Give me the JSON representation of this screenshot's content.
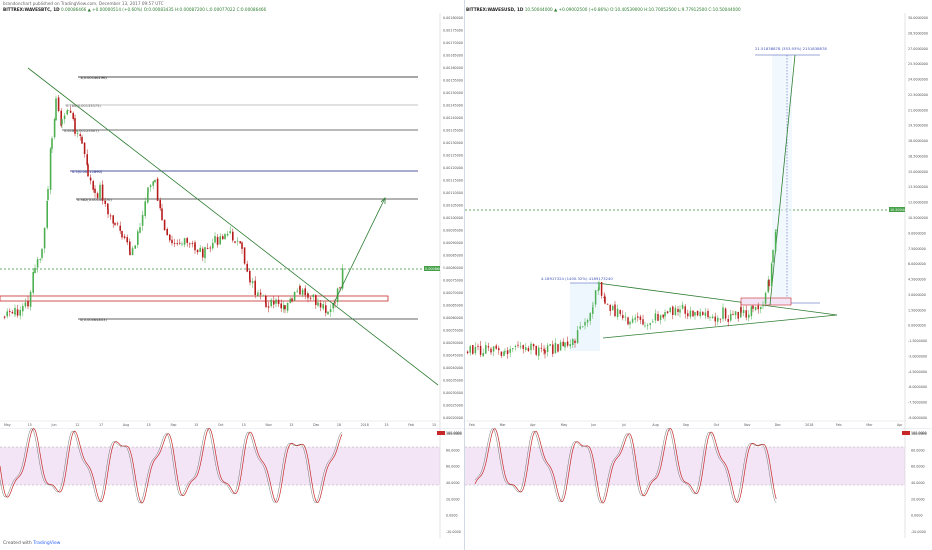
{
  "left_header": {
    "published": "brandonchart published on TradingView.com, December 13, 2017 09:57 UTC",
    "symbol": "BITTREX:WAVESBTC, 1D",
    "ohlc": "0.00086466 ▲ +0.00000514 (+0.60%)  O:0.00083435  H:0.00087200  L:0.00077022  C:0.00086466"
  },
  "right_header": {
    "symbol": "BITTREX:WAVESUSD, 1D",
    "ohlc": "10.50044000 ▲ +0.09002500 (+0.86%)  O:10.40539000  H:10.70052500  L:9.77912500  C:10.50044000"
  },
  "left_chart": {
    "price_axis": [
      "0.00180000",
      "0.00175000",
      "0.00170000",
      "0.00165000",
      "0.00160000",
      "0.00155000",
      "0.00150000",
      "0.00145000",
      "0.00140000",
      "0.00135000",
      "0.00130000",
      "0.00125000",
      "0.00120000",
      "0.00115000",
      "0.00110000",
      "0.00105000",
      "0.00100000",
      "0.00095000",
      "0.00090000",
      "0.00085000",
      "0.00080000",
      "0.00075000",
      "0.00070000",
      "0.00065000",
      "0.00060000",
      "0.00055000",
      "0.00050000",
      "0.00045000",
      "0.00040000",
      "0.00035000",
      "0.00030000",
      "0.00025000",
      "0.00020000"
    ],
    "fib_labels": [
      "1(0.00146196)",
      "0.786(0.00133375)",
      "0.618(0.00125307)",
      "0.5(0.00111890)",
      "0.382(0.00100770)",
      "0(0.00064803)"
    ],
    "current_price_tag": "0.00086466",
    "time_axis": [
      "May",
      "15",
      "Jun",
      "12",
      "17",
      "Aug",
      "15",
      "Sep",
      "15",
      "Oct",
      "15",
      "Nov",
      "15",
      "Dec",
      "18",
      "2018",
      "15",
      "Feb",
      "15"
    ]
  },
  "right_chart": {
    "price_axis": [
      "30.0000000",
      "28.5000000",
      "27.0000000",
      "25.5000000",
      "24.0000000",
      "22.5000000",
      "21.0000000",
      "19.5000000",
      "18.0000000",
      "16.5000000",
      "15.0000000",
      "13.5000000",
      "12.0000000",
      "10.5000000",
      "9.0000000",
      "7.5000000",
      "6.0000000",
      "4.5000000",
      "3.0000000",
      "1.5000000",
      "0.0000000",
      "-1.5000000",
      "-3.0000000",
      "-4.5000000",
      "-6.0000000",
      "-7.5000000",
      "-9.0000000"
    ],
    "measure_top": "21.51838878 (353.93%) 2151838878",
    "measure_bottom": "4.18917324 (1400.32%) 4189173240",
    "current_price_tag": "10.50044000",
    "time_axis": [
      "Feb",
      "Mar",
      "Apr",
      "May",
      "Jun",
      "Jul",
      "Aug",
      "Sep",
      "Oct",
      "Nov",
      "Dec",
      "2018",
      "Feb",
      "Mar",
      "Apr"
    ]
  },
  "left_osc": {
    "axis": [
      "100.0000",
      "80.0000",
      "60.0000",
      "40.0000",
      "20.0000",
      "0.0000",
      "-20.0000"
    ],
    "value_tag": "100.0000"
  },
  "right_osc": {
    "axis": [
      "100.0000",
      "80.0000",
      "60.0000",
      "40.0000",
      "20.0000",
      "0.0000",
      "-20.0000"
    ],
    "value_tag": "100.0000"
  },
  "footer": {
    "created_with": "Created with",
    "brand": "TradingView"
  },
  "colors": {
    "candle_up": "#4caf50",
    "candle_down": "#b71c1c",
    "trendline": "#2e7d32",
    "fib_line": "#111111",
    "fib_blue": "#1a237e",
    "zone_red": "#c62828",
    "osc_red": "#c62828",
    "osc_band": "#f3e5f5"
  }
}
